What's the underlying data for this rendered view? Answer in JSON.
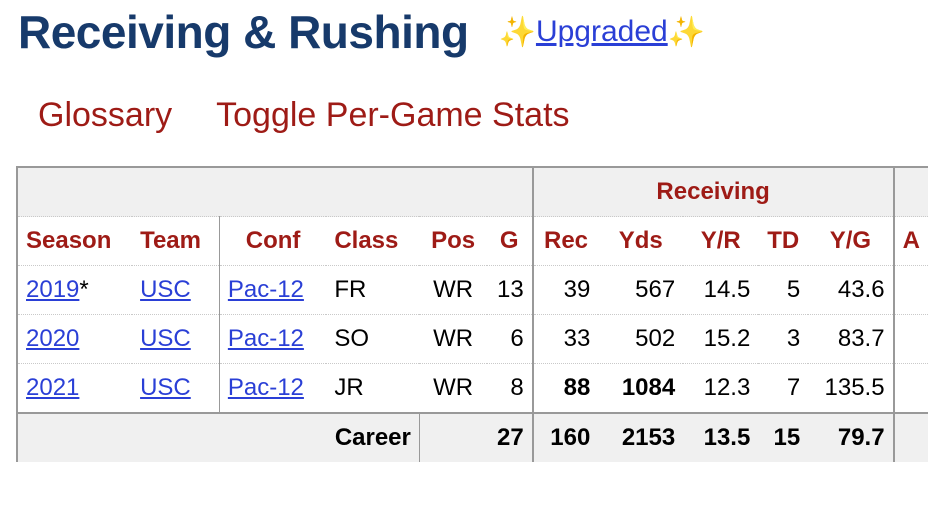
{
  "header": {
    "title": "Receiving & Rushing",
    "upgraded_label": "Upgraded",
    "sparkle": "✨"
  },
  "links": {
    "glossary": "Glossary",
    "toggle": "Toggle Per-Game Stats"
  },
  "table": {
    "over_header": "Receiving",
    "columns": [
      "Season",
      "Team",
      "Conf",
      "Class",
      "Pos",
      "G",
      "Rec",
      "Yds",
      "Y/R",
      "TD",
      "Y/G",
      "A"
    ],
    "rows": [
      {
        "season": "2019",
        "season_mark": "*",
        "team": "USC",
        "conf": "Pac-12",
        "class": "FR",
        "pos": "WR",
        "g": "13",
        "rec": "39",
        "yds": "567",
        "yr": "14.5",
        "td": "5",
        "yg": "43.6"
      },
      {
        "season": "2020",
        "season_mark": "",
        "team": "USC",
        "conf": "Pac-12",
        "class": "SO",
        "pos": "WR",
        "g": "6",
        "rec": "33",
        "yds": "502",
        "yr": "15.2",
        "td": "3",
        "yg": "83.7"
      },
      {
        "season": "2021",
        "season_mark": "",
        "team": "USC",
        "conf": "Pac-12",
        "class": "JR",
        "pos": "WR",
        "g": "8",
        "rec": "88",
        "yds": "1084",
        "yr": "12.3",
        "td": "7",
        "yg": "135.5"
      }
    ],
    "career": {
      "label": "Career",
      "g": "27",
      "rec": "160",
      "yds": "2153",
      "yr": "13.5",
      "td": "15",
      "yg": "79.7"
    }
  }
}
